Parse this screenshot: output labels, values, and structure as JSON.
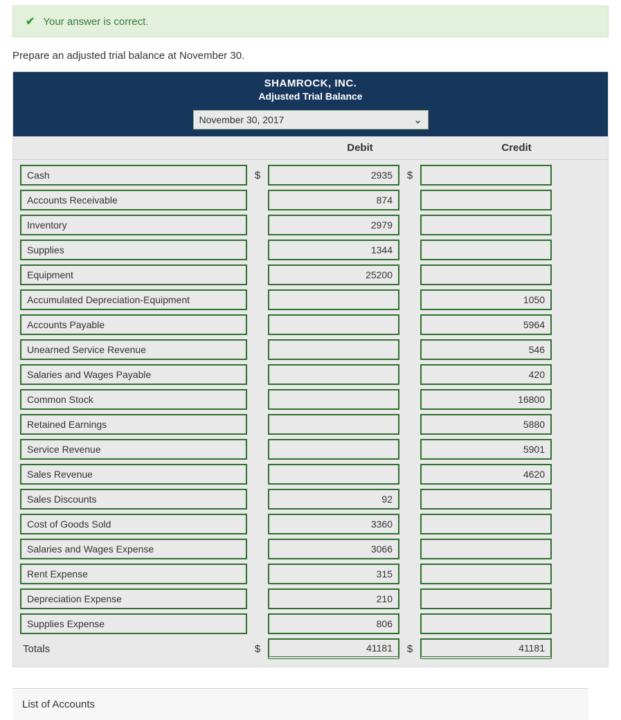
{
  "banner": {
    "text": "Your answer is correct."
  },
  "instruction": "Prepare an adjusted trial balance at November 30.",
  "header": {
    "company": "SHAMROCK, INC.",
    "title": "Adjusted Trial Balance",
    "date": "November 30, 2017"
  },
  "columns": {
    "debit": "Debit",
    "credit": "Credit"
  },
  "rows": [
    {
      "account": "Cash",
      "debit": "2935",
      "credit": "",
      "show_currency": true
    },
    {
      "account": "Accounts Receivable",
      "debit": "874",
      "credit": ""
    },
    {
      "account": "Inventory",
      "debit": "2979",
      "credit": ""
    },
    {
      "account": "Supplies",
      "debit": "1344",
      "credit": ""
    },
    {
      "account": "Equipment",
      "debit": "25200",
      "credit": ""
    },
    {
      "account": "Accumulated Depreciation-Equipment",
      "debit": "",
      "credit": "1050"
    },
    {
      "account": "Accounts Payable",
      "debit": "",
      "credit": "5964"
    },
    {
      "account": "Unearned Service Revenue",
      "debit": "",
      "credit": "546"
    },
    {
      "account": "Salaries and Wages Payable",
      "debit": "",
      "credit": "420"
    },
    {
      "account": "Common Stock",
      "debit": "",
      "credit": "16800"
    },
    {
      "account": "Retained Earnings",
      "debit": "",
      "credit": "5880"
    },
    {
      "account": "Service Revenue",
      "debit": "",
      "credit": "5901"
    },
    {
      "account": "Sales Revenue",
      "debit": "",
      "credit": "4620"
    },
    {
      "account": "Sales Discounts",
      "debit": "92",
      "credit": ""
    },
    {
      "account": "Cost of Goods Sold",
      "debit": "3360",
      "credit": ""
    },
    {
      "account": "Salaries and Wages Expense",
      "debit": "3066",
      "credit": ""
    },
    {
      "account": "Rent Expense",
      "debit": "315",
      "credit": ""
    },
    {
      "account": "Depreciation Expense",
      "debit": "210",
      "credit": ""
    },
    {
      "account": "Supplies Expense",
      "debit": "806",
      "credit": ""
    }
  ],
  "totals": {
    "label": "Totals",
    "debit": "41181",
    "credit": "41181"
  },
  "footer": {
    "listOfAccounts": "List of Accounts"
  },
  "colors": {
    "header_bg": "#17365c",
    "input_border": "#2f6f2f",
    "body_bg": "#e9e9e9",
    "banner_bg": "#e3f1dc"
  }
}
